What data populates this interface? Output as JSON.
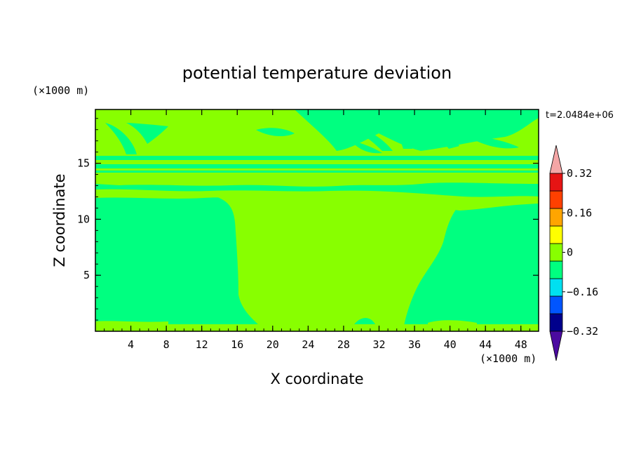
{
  "chart_data": {
    "type": "heatmap",
    "title": "potential temperature deviation",
    "xlabel": "X coordinate",
    "ylabel": "Z coordinate",
    "x_unit": "(×1000 m)",
    "y_unit": "(×1000 m)",
    "time_label": "t=2.0484e+06",
    "xlim": [
      0,
      50
    ],
    "ylim": [
      0,
      19.8
    ],
    "x_ticks": [
      "4",
      "8",
      "12",
      "16",
      "20",
      "24",
      "28",
      "32",
      "36",
      "40",
      "44",
      "48"
    ],
    "y_ticks": [
      "5",
      "10",
      "15"
    ],
    "colorbar": {
      "labels": [
        "0.32",
        "0.16",
        "0",
        "-0.16",
        "-0.32"
      ],
      "levels": [
        -0.4,
        -0.32,
        -0.24,
        -0.16,
        -0.08,
        0,
        0.08,
        0.16,
        0.24,
        0.32,
        0.4
      ],
      "colors": [
        "#4b0aa0",
        "#00008c",
        "#0055ff",
        "#00e0f0",
        "#00ff80",
        "#88ff00",
        "#ffff00",
        "#ffa500",
        "#ff4000",
        "#e61414",
        "#f4a6a6"
      ]
    },
    "field_summary": {
      "background_class_color": "#00ff80",
      "background_range": [
        -0.08,
        0
      ],
      "plume_class_color": "#88ff00",
      "plume_range": [
        0,
        0.08
      ]
    }
  }
}
